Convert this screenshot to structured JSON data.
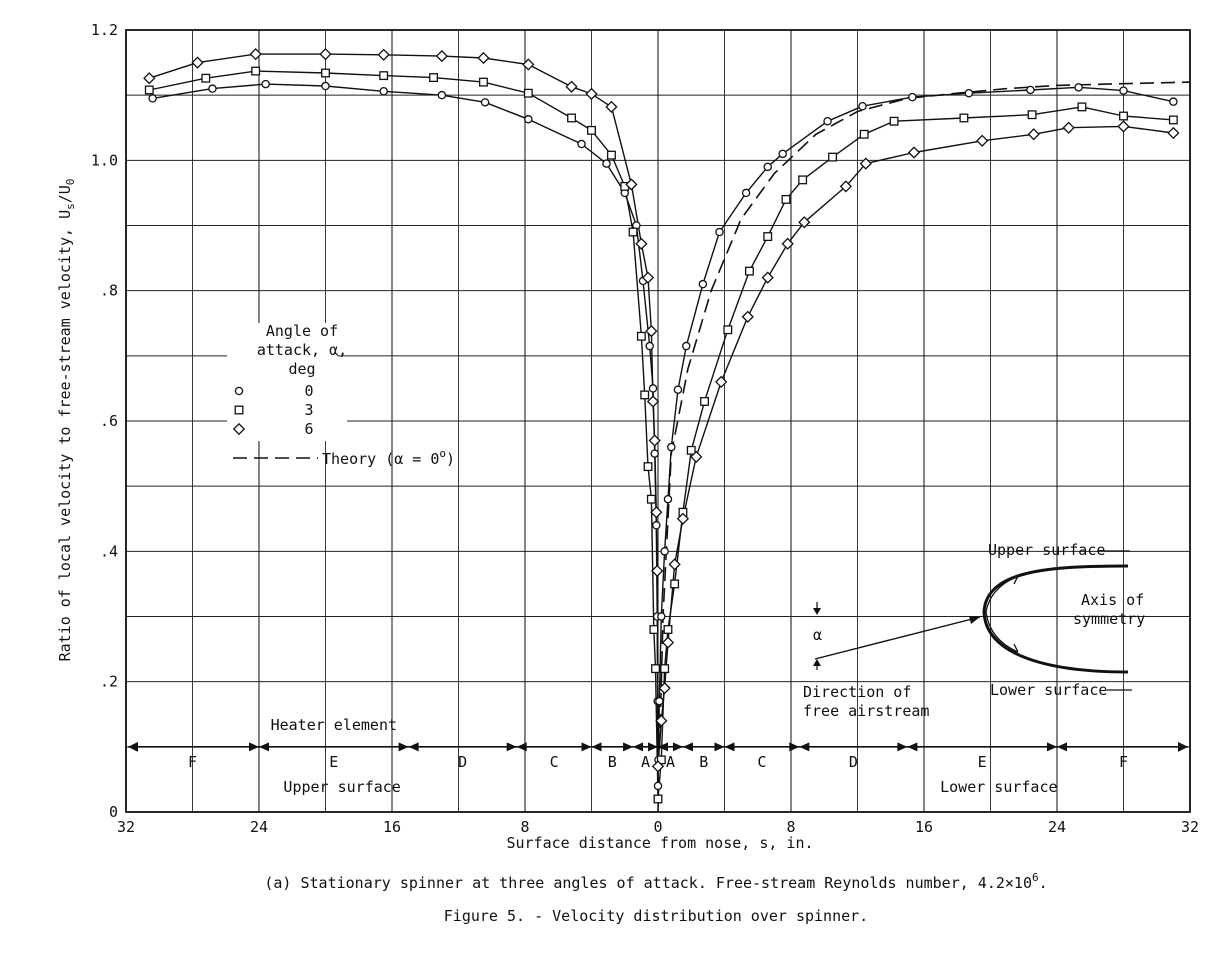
{
  "chart_data": {
    "type": "line",
    "xlabel": "Surface distance from nose, s, in.",
    "ylabel": "Ratio of local velocity to free-stream velocity, U_s/U_0",
    "xlim": [
      -32,
      32
    ],
    "ylim": [
      0,
      1.2
    ],
    "x_tick_labels": [
      "32",
      "24",
      "16",
      "8",
      "0",
      "8",
      "16",
      "24",
      "32"
    ],
    "x_ticks": [
      -32,
      -24,
      -16,
      -8,
      0,
      8,
      16,
      24,
      32
    ],
    "y_tick_labels": [
      "0",
      ".2",
      ".4",
      ".6",
      ".8",
      "1.0",
      "1.2"
    ],
    "y_ticks": [
      0,
      0.2,
      0.4,
      0.6,
      0.8,
      1.0,
      1.2
    ],
    "grid": true,
    "legend": {
      "title_lines": [
        "Angle of",
        "attack, α,",
        "deg"
      ],
      "entries": [
        {
          "marker": "circle",
          "label": "0"
        },
        {
          "marker": "square",
          "label": "3"
        },
        {
          "marker": "diamond",
          "label": "6"
        },
        {
          "marker": "dashed-line",
          "label": "Theory (α = 0°)"
        }
      ]
    },
    "series": [
      {
        "name": "0",
        "marker": "circle",
        "points": [
          [
            -30.4,
            1.095
          ],
          [
            -26.8,
            1.11
          ],
          [
            -23.6,
            1.117
          ],
          [
            -20,
            1.114
          ],
          [
            -16.5,
            1.106
          ],
          [
            -13,
            1.1
          ],
          [
            -10.4,
            1.089
          ],
          [
            -7.8,
            1.063
          ],
          [
            -4.6,
            1.025
          ],
          [
            -3.1,
            0.995
          ],
          [
            -2,
            0.95
          ],
          [
            -1.3,
            0.9
          ],
          [
            -0.9,
            0.815
          ],
          [
            -0.5,
            0.715
          ],
          [
            -0.3,
            0.65
          ],
          [
            -0.2,
            0.55
          ],
          [
            -0.1,
            0.44
          ],
          [
            -0.05,
            0.3
          ],
          [
            -0.02,
            0.17
          ],
          [
            0,
            0.04
          ],
          [
            0.03,
            0.08
          ],
          [
            0.08,
            0.17
          ],
          [
            0.2,
            0.3
          ],
          [
            0.4,
            0.4
          ],
          [
            0.6,
            0.48
          ],
          [
            0.8,
            0.56
          ],
          [
            1.2,
            0.648
          ],
          [
            1.7,
            0.715
          ],
          [
            2.7,
            0.81
          ],
          [
            3.7,
            0.89
          ],
          [
            5.3,
            0.95
          ],
          [
            6.6,
            0.99
          ],
          [
            7.5,
            1.01
          ],
          [
            10.2,
            1.06
          ],
          [
            12.3,
            1.083
          ],
          [
            15.3,
            1.097
          ],
          [
            18.7,
            1.103
          ],
          [
            22.4,
            1.108
          ],
          [
            25.3,
            1.112
          ],
          [
            28,
            1.107
          ],
          [
            31,
            1.09
          ]
        ]
      },
      {
        "name": "3",
        "marker": "square",
        "points": [
          [
            -30.6,
            1.108
          ],
          [
            -27.2,
            1.126
          ],
          [
            -24.2,
            1.137
          ],
          [
            -20,
            1.134
          ],
          [
            -16.5,
            1.13
          ],
          [
            -13.5,
            1.127
          ],
          [
            -10.5,
            1.12
          ],
          [
            -7.8,
            1.103
          ],
          [
            -5.2,
            1.065
          ],
          [
            -4,
            1.046
          ],
          [
            -2.8,
            1.008
          ],
          [
            -2,
            0.96
          ],
          [
            -1.5,
            0.89
          ],
          [
            -1,
            0.73
          ],
          [
            -0.8,
            0.64
          ],
          [
            -0.6,
            0.53
          ],
          [
            -0.4,
            0.48
          ],
          [
            -0.25,
            0.28
          ],
          [
            -0.15,
            0.22
          ],
          [
            0,
            0.02
          ],
          [
            0.2,
            0.08
          ],
          [
            0.4,
            0.22
          ],
          [
            0.6,
            0.28
          ],
          [
            1,
            0.35
          ],
          [
            1.5,
            0.46
          ],
          [
            2,
            0.555
          ],
          [
            2.8,
            0.63
          ],
          [
            4.2,
            0.74
          ],
          [
            5.5,
            0.83
          ],
          [
            6.6,
            0.883
          ],
          [
            7.7,
            0.94
          ],
          [
            8.7,
            0.97
          ],
          [
            10.5,
            1.005
          ],
          [
            12.4,
            1.04
          ],
          [
            14.2,
            1.06
          ],
          [
            18.4,
            1.065
          ],
          [
            22.5,
            1.07
          ],
          [
            25.5,
            1.082
          ],
          [
            28,
            1.068
          ],
          [
            31,
            1.062
          ]
        ]
      },
      {
        "name": "6",
        "marker": "diamond",
        "points": [
          [
            -30.6,
            1.126
          ],
          [
            -27.7,
            1.15
          ],
          [
            -24.2,
            1.163
          ],
          [
            -20,
            1.163
          ],
          [
            -16.5,
            1.162
          ],
          [
            -13,
            1.16
          ],
          [
            -10.5,
            1.157
          ],
          [
            -7.8,
            1.147
          ],
          [
            -5.2,
            1.113
          ],
          [
            -4,
            1.102
          ],
          [
            -2.8,
            1.082
          ],
          [
            -1.6,
            0.963
          ],
          [
            -1,
            0.872
          ],
          [
            -0.6,
            0.82
          ],
          [
            -0.4,
            0.738
          ],
          [
            -0.3,
            0.63
          ],
          [
            -0.2,
            0.57
          ],
          [
            -0.1,
            0.46
          ],
          [
            -0.05,
            0.37
          ],
          [
            0,
            0.07
          ],
          [
            0.2,
            0.14
          ],
          [
            0.4,
            0.19
          ],
          [
            0.6,
            0.26
          ],
          [
            1,
            0.38
          ],
          [
            1.5,
            0.45
          ],
          [
            2.3,
            0.545
          ],
          [
            3.8,
            0.66
          ],
          [
            5.4,
            0.76
          ],
          [
            6.6,
            0.82
          ],
          [
            7.8,
            0.872
          ],
          [
            8.8,
            0.905
          ],
          [
            11.3,
            0.96
          ],
          [
            12.5,
            0.995
          ],
          [
            15.4,
            1.012
          ],
          [
            19.5,
            1.03
          ],
          [
            22.6,
            1.04
          ],
          [
            24.7,
            1.05
          ],
          [
            28,
            1.052
          ],
          [
            31,
            1.042
          ]
        ]
      }
    ],
    "theory_curve": {
      "name": "Theory (α = 0°)",
      "style": "dashed",
      "points": [
        [
          0,
          0
        ],
        [
          0.3,
          0.3
        ],
        [
          0.8,
          0.55
        ],
        [
          1.8,
          0.68
        ],
        [
          3.2,
          0.8
        ],
        [
          5,
          0.91
        ],
        [
          7,
          0.98
        ],
        [
          9.5,
          1.04
        ],
        [
          12,
          1.075
        ],
        [
          15,
          1.095
        ],
        [
          18,
          1.103
        ],
        [
          21,
          1.11
        ],
        [
          24,
          1.115
        ],
        [
          27,
          1.117
        ],
        [
          32,
          1.12
        ]
      ]
    },
    "annotations": {
      "heater_label": "Heater element",
      "heater_y": 0.1,
      "zone_boundaries": [
        -32,
        -24,
        -15,
        -8.5,
        -4,
        -1.5,
        0,
        1.5,
        4,
        8.5,
        15,
        24,
        32
      ],
      "zone_letters": [
        {
          "letter": "F",
          "x": -28
        },
        {
          "letter": "E",
          "x": -19.5
        },
        {
          "letter": "D",
          "x": -11.75
        },
        {
          "letter": "C",
          "x": -6.25
        },
        {
          "letter": "B",
          "x": -2.75
        },
        {
          "letter": "A",
          "x": -0.75
        },
        {
          "letter": "A",
          "x": 0.75
        },
        {
          "letter": "B",
          "x": 2.75
        },
        {
          "letter": "C",
          "x": 6.25
        },
        {
          "letter": "D",
          "x": 11.75
        },
        {
          "letter": "E",
          "x": 19.5
        },
        {
          "letter": "F",
          "x": 28
        }
      ],
      "upper_surface_label": "Upper surface",
      "lower_surface_label": "Lower surface",
      "inset": {
        "upper_surface": "Upper surface",
        "lower_surface": "Lower surface",
        "axis_line1": "Axis of",
        "axis_line2": "symmetry",
        "alpha": "α",
        "direction_line1": "Direction of",
        "direction_line2": "free airstream"
      }
    }
  },
  "caption": {
    "sub": "(a) Stationary spinner at three angles of attack.  Free-stream Reynolds number, 4.2×10",
    "sub_exp": "6",
    "figure": "Figure 5. - Velocity distribution over spinner."
  }
}
